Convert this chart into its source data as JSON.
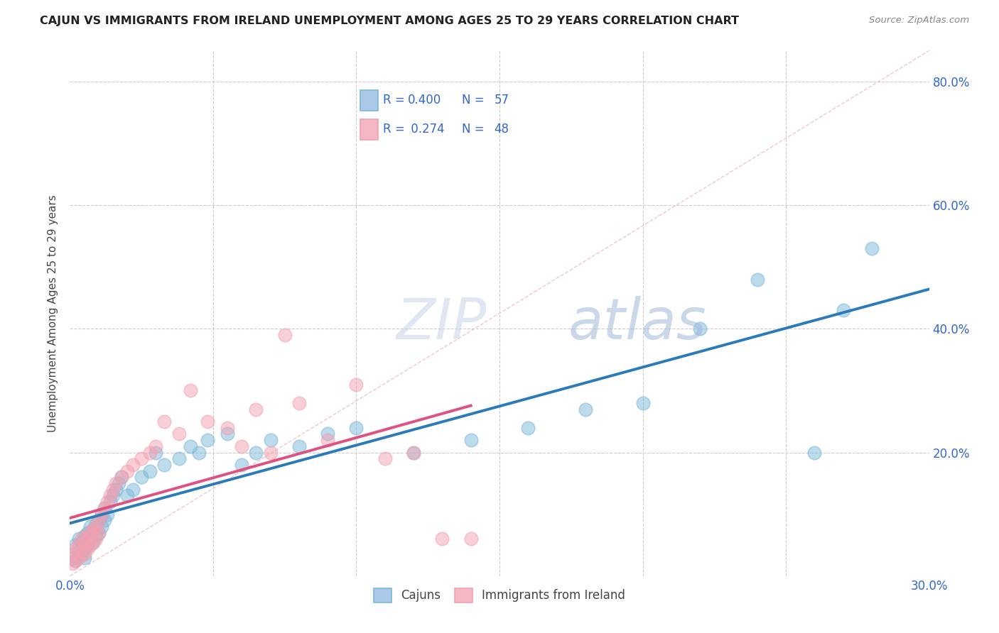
{
  "title": "CAJUN VS IMMIGRANTS FROM IRELAND UNEMPLOYMENT AMONG AGES 25 TO 29 YEARS CORRELATION CHART",
  "source": "Source: ZipAtlas.com",
  "ylabel": "Unemployment Among Ages 25 to 29 years",
  "xlim": [
    0.0,
    0.3
  ],
  "ylim": [
    0.0,
    0.85
  ],
  "xticks": [
    0.0,
    0.05,
    0.1,
    0.15,
    0.2,
    0.25,
    0.3
  ],
  "xtick_labels": [
    "0.0%",
    "",
    "",
    "",
    "",
    "",
    "30.0%"
  ],
  "ytick_positions_right": [
    0.2,
    0.4,
    0.6,
    0.8
  ],
  "ytick_labels_right": [
    "20.0%",
    "40.0%",
    "60.0%",
    "80.0%"
  ],
  "cajun_color": "#7ab8d9",
  "ireland_color": "#f4a0b0",
  "cajun_line_color": "#2b7bba",
  "ireland_line_color": "#e05080",
  "diag_line_color": "#f0b8c0",
  "legend_color": "#3366cc",
  "background_color": "#ffffff",
  "grid_color": "#cccccc",
  "watermark_color": "#c8d8ec",
  "cajun_x": [
    0.001,
    0.002,
    0.002,
    0.003,
    0.003,
    0.004,
    0.004,
    0.005,
    0.005,
    0.005,
    0.006,
    0.006,
    0.007,
    0.007,
    0.008,
    0.008,
    0.009,
    0.009,
    0.01,
    0.01,
    0.011,
    0.011,
    0.012,
    0.012,
    0.013,
    0.014,
    0.015,
    0.016,
    0.017,
    0.018,
    0.02,
    0.022,
    0.025,
    0.028,
    0.03,
    0.033,
    0.038,
    0.042,
    0.045,
    0.048,
    0.055,
    0.06,
    0.065,
    0.07,
    0.08,
    0.09,
    0.1,
    0.12,
    0.14,
    0.16,
    0.18,
    0.2,
    0.22,
    0.24,
    0.26,
    0.27,
    0.28
  ],
  "cajun_y": [
    0.03,
    0.025,
    0.05,
    0.04,
    0.06,
    0.035,
    0.055,
    0.03,
    0.045,
    0.065,
    0.05,
    0.07,
    0.06,
    0.08,
    0.055,
    0.075,
    0.065,
    0.085,
    0.07,
    0.09,
    0.08,
    0.1,
    0.09,
    0.11,
    0.1,
    0.12,
    0.13,
    0.14,
    0.15,
    0.16,
    0.13,
    0.14,
    0.16,
    0.17,
    0.2,
    0.18,
    0.19,
    0.21,
    0.2,
    0.22,
    0.23,
    0.18,
    0.2,
    0.22,
    0.21,
    0.23,
    0.24,
    0.2,
    0.22,
    0.24,
    0.27,
    0.28,
    0.4,
    0.48,
    0.2,
    0.43,
    0.53
  ],
  "ireland_x": [
    0.001,
    0.001,
    0.002,
    0.002,
    0.003,
    0.003,
    0.004,
    0.004,
    0.005,
    0.005,
    0.006,
    0.006,
    0.007,
    0.007,
    0.008,
    0.008,
    0.009,
    0.009,
    0.01,
    0.01,
    0.011,
    0.012,
    0.013,
    0.014,
    0.015,
    0.016,
    0.018,
    0.02,
    0.022,
    0.025,
    0.028,
    0.03,
    0.033,
    0.038,
    0.042,
    0.048,
    0.055,
    0.06,
    0.065,
    0.07,
    0.075,
    0.08,
    0.09,
    0.1,
    0.11,
    0.12,
    0.13,
    0.14
  ],
  "ireland_y": [
    0.02,
    0.035,
    0.025,
    0.045,
    0.03,
    0.05,
    0.04,
    0.06,
    0.035,
    0.055,
    0.045,
    0.065,
    0.05,
    0.07,
    0.055,
    0.075,
    0.06,
    0.08,
    0.07,
    0.09,
    0.1,
    0.11,
    0.12,
    0.13,
    0.14,
    0.15,
    0.16,
    0.17,
    0.18,
    0.19,
    0.2,
    0.21,
    0.25,
    0.23,
    0.3,
    0.25,
    0.24,
    0.21,
    0.27,
    0.2,
    0.39,
    0.28,
    0.22,
    0.31,
    0.19,
    0.2,
    0.06,
    0.06
  ],
  "cajun_R": 0.4,
  "cajun_N": 57,
  "ireland_R": 0.274,
  "ireland_N": 48
}
